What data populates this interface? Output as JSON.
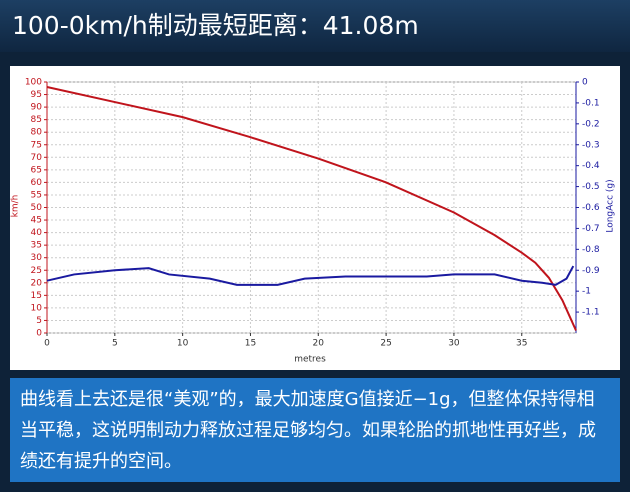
{
  "header": {
    "title": "100-0km/h制动最短距离：41.08m"
  },
  "chart_data": {
    "type": "line",
    "xlabel": "metres",
    "ylabel": "km/h",
    "y2label": "LongAcc (g)",
    "xlim": [
      0,
      39
    ],
    "xticks": [
      0,
      5,
      10,
      15,
      20,
      25,
      30,
      35
    ],
    "ylim": [
      0,
      100
    ],
    "yticks": [
      0,
      5,
      10,
      15,
      20,
      25,
      30,
      35,
      40,
      45,
      50,
      55,
      60,
      65,
      70,
      75,
      80,
      85,
      90,
      95,
      100
    ],
    "y2lim": [
      -1.2,
      0
    ],
    "y2ticks": [
      0,
      -0.1,
      -0.2,
      -0.3,
      -0.4,
      -0.5,
      -0.6,
      -0.7,
      -0.8,
      -0.9,
      -1,
      -1.1
    ],
    "grid": true,
    "series": [
      {
        "color": "#c0141c",
        "x": [
          0,
          5,
          10,
          15,
          20,
          25,
          30,
          33,
          35,
          36,
          37,
          38,
          38.5,
          39
        ],
        "values": [
          98,
          92,
          86,
          78,
          69.5,
          60,
          48,
          39,
          32,
          28,
          22,
          13,
          7,
          1
        ]
      },
      {
        "color": "#1a1aa0",
        "axis": "y2",
        "x": [
          0,
          2,
          5,
          7.5,
          9,
          12,
          14,
          17,
          19,
          22,
          25,
          28,
          30,
          33,
          35,
          36.5,
          37.5,
          38.3,
          38.8
        ],
        "values": [
          -0.95,
          -0.92,
          -0.9,
          -0.89,
          -0.92,
          -0.94,
          -0.97,
          -0.97,
          -0.94,
          -0.93,
          -0.93,
          -0.93,
          -0.92,
          -0.92,
          -0.95,
          -0.96,
          -0.97,
          -0.94,
          -0.88
        ]
      }
    ]
  },
  "caption": "曲线看上去还是很“美观”的，最大加速度G值接近−1g，但整体保持得相当平稳，这说明制动力释放过程足够均匀。如果轮胎的抓地性再好些，成绩还有提升的空间。"
}
